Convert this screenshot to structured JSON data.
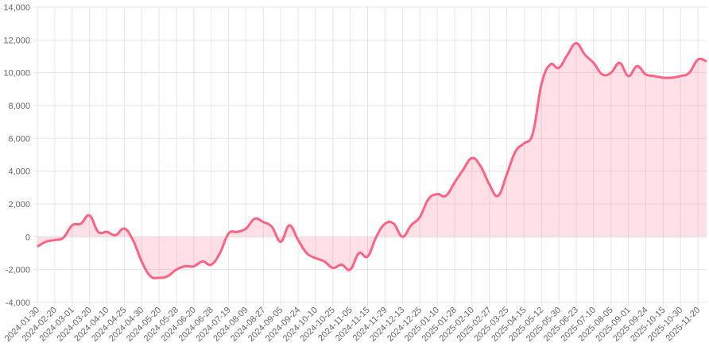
{
  "chart_data": {
    "type": "area",
    "categories": [
      "2024-01-30",
      null,
      "2024-02-20",
      null,
      "2024-03-01",
      null,
      "2024-03-20",
      null,
      "2024-04-10",
      null,
      "2024-04-25",
      null,
      "2024-04-30",
      null,
      "2024-05-20",
      null,
      "2024-05-28",
      null,
      "2024-06-20",
      null,
      "2024-06-28",
      null,
      "2024-07-19",
      null,
      "2024-08-09",
      null,
      "2024-08-27",
      null,
      "2024-09-05",
      null,
      "2024-09-24",
      null,
      "2024-10-10",
      null,
      "2024-10-25",
      null,
      "2024-11-05",
      null,
      "2024-11-15",
      null,
      "2024-11-29",
      null,
      "2024-12-13",
      null,
      "2024-12-25",
      null,
      "2025-01-10",
      null,
      "2025-01-28",
      null,
      "2025-02-10",
      null,
      "2025-02-27",
      null,
      "2025-03-25",
      null,
      "2025-04-15",
      null,
      "2025-05-12",
      null,
      "2025-05-30",
      null,
      "2025-06-23",
      null,
      "2025-07-10",
      null,
      "2025-08-05",
      null,
      "2025-09-01",
      null,
      "2025-09-24",
      null,
      "2025-10-15",
      null,
      "2025-10-30",
      null,
      "2025-11-20",
      null
    ],
    "values": [
      -600,
      -300,
      -200,
      -50,
      700,
      800,
      1300,
      300,
      300,
      100,
      500,
      -200,
      -1500,
      -2400,
      -2500,
      -2400,
      -2000,
      -1800,
      -1800,
      -1500,
      -1700,
      -1000,
      200,
      300,
      500,
      1100,
      900,
      600,
      -300,
      700,
      -200,
      -1000,
      -1300,
      -1500,
      -1900,
      -1700,
      -2000,
      -1000,
      -1200,
      0,
      800,
      800,
      0,
      700,
      1200,
      2300,
      2600,
      2500,
      3300,
      4100,
      4800,
      4300,
      3200,
      2500,
      3800,
      5200,
      5700,
      6300,
      9300,
      10500,
      10300,
      11100,
      11800,
      11100,
      10600,
      9900,
      10000,
      10600,
      9800,
      10400,
      9900,
      9800,
      9700,
      9700,
      9800,
      10000,
      10800,
      10700
    ],
    "color": "#ff6384",
    "fill": "rgba(255,99,132,0.2)",
    "ylim": [
      -4000,
      14000
    ],
    "yticks": [
      {
        "value": -4000,
        "label": "-4,000"
      },
      {
        "value": -2000,
        "label": "-2,000"
      },
      0,
      {
        "value": 2000,
        "label": "2,000"
      },
      {
        "value": 4000,
        "label": "4,000"
      },
      {
        "value": 6000,
        "label": "6,000"
      },
      {
        "value": 8000,
        "label": "8,000"
      },
      {
        "value": 10000,
        "label": "10,000"
      },
      {
        "value": 12000,
        "label": "12,000"
      },
      {
        "value": 14000,
        "label": "14,000"
      }
    ],
    "grid": true
  }
}
